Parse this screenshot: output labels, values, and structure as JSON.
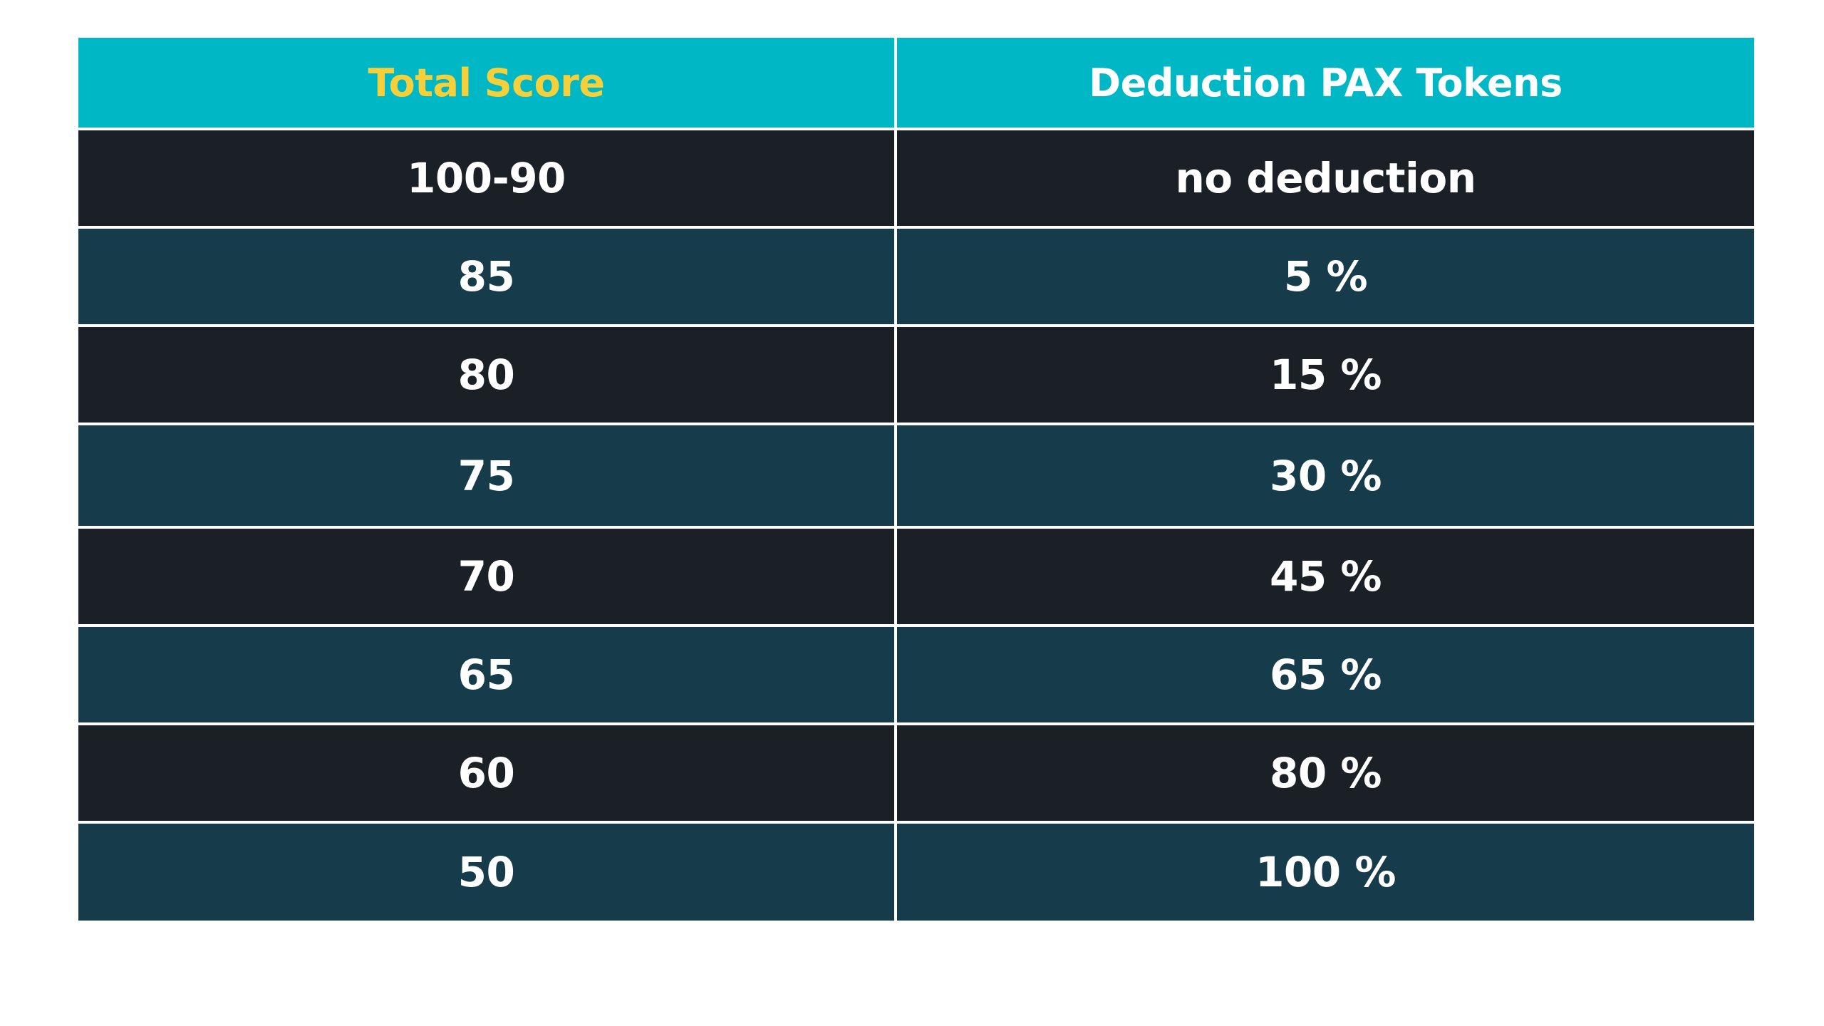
{
  "colors": {
    "header_background": "#00b7c5",
    "header_score_text": "#f5d03b",
    "header_deduction_text": "#ffffff",
    "row_dark": "#1b2026",
    "row_teal": "#163c4c",
    "cell_text": "#ffffff",
    "grid_lines": "#ffffff"
  },
  "table": {
    "headers": [
      "Total Score",
      "Deduction PAX Tokens"
    ],
    "rows": [
      {
        "score": "100-90",
        "deduction": "no deduction"
      },
      {
        "score": "85",
        "deduction": "5 %"
      },
      {
        "score": "80",
        "deduction": "15 %"
      },
      {
        "score": "75",
        "deduction": "30 %"
      },
      {
        "score": "70",
        "deduction": "45 %"
      },
      {
        "score": "65",
        "deduction": "65 %"
      },
      {
        "score": "60",
        "deduction": "80 %"
      },
      {
        "score": "50",
        "deduction": "100 %"
      }
    ]
  }
}
